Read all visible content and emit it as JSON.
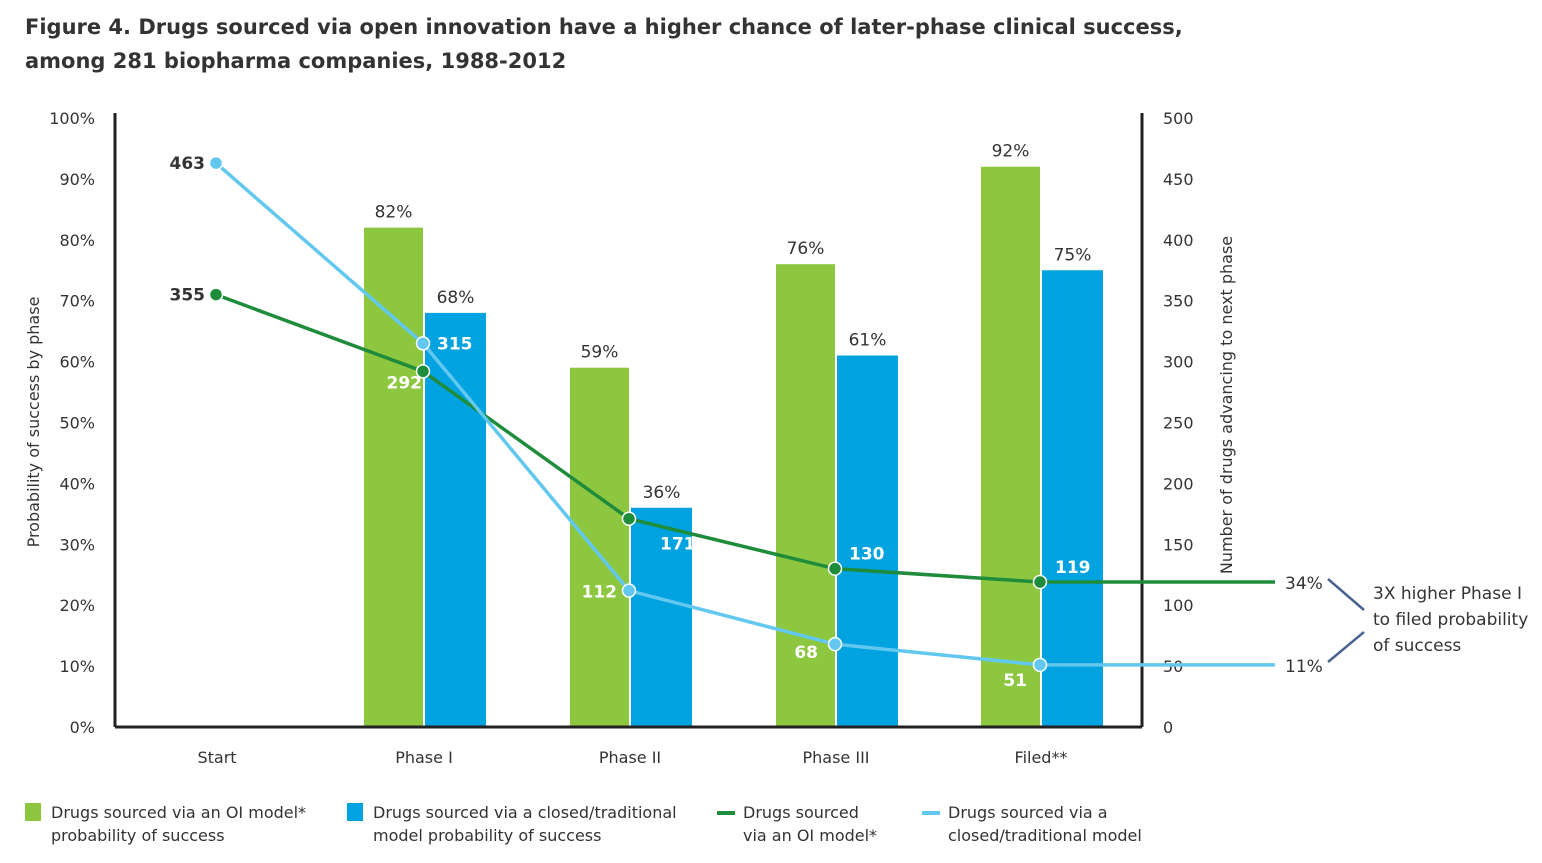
{
  "title_line1": "Figure 4. Drugs sourced via open innovation have a higher chance of later-phase clinical success,",
  "title_line2": "among 281 biopharma companies, 1988-2012",
  "chart_data": {
    "type": "bar+line",
    "categories": [
      "Start",
      "Phase I",
      "Phase II",
      "Phase III",
      "Filed**"
    ],
    "ylabel": "Probability of success by phase",
    "y2label": "Number of drugs advancing to next phase",
    "ylim": [
      0,
      100
    ],
    "y2lim": [
      0,
      500
    ],
    "yticks": [
      "0%",
      "10%",
      "20%",
      "30%",
      "40%",
      "50%",
      "60%",
      "70%",
      "80%",
      "90%",
      "100%"
    ],
    "y2ticks": [
      "0",
      "50",
      "100",
      "150",
      "200",
      "250",
      "300",
      "350",
      "400",
      "450",
      "500"
    ],
    "bars": [
      {
        "name": "Drugs sourced via an OI model* probability of success",
        "color": "#8dc63f",
        "values": [
          null,
          82,
          59,
          76,
          92
        ],
        "labels": [
          "",
          "82%",
          "59%",
          "76%",
          "92%"
        ]
      },
      {
        "name": "Drugs sourced via a closed/traditional model probability of success",
        "color": "#00a3e0",
        "values": [
          null,
          68,
          36,
          61,
          75
        ],
        "labels": [
          "",
          "68%",
          "36%",
          "61%",
          "75%"
        ]
      }
    ],
    "lines": [
      {
        "name": "Drugs sourced via an OI model*",
        "color": "#1e8c3a",
        "values": [
          355,
          292,
          171,
          130,
          119
        ],
        "end_label": "34%"
      },
      {
        "name": "Drugs sourced via a closed/traditional model",
        "color": "#62c8ef",
        "values": [
          463,
          315,
          112,
          68,
          51
        ],
        "end_label": "11%"
      }
    ],
    "annotation": [
      "3X higher Phase I",
      "to filed probability",
      "of success"
    ],
    "legend_position": "bottom",
    "grid": false
  },
  "legend": [
    {
      "line1": "Drugs sourced via an OI model*",
      "line2": "probability of success"
    },
    {
      "line1": "Drugs sourced via a closed/traditional",
      "line2": "model probability of success"
    },
    {
      "line1": "Drugs sourced",
      "line2": "via an OI model*"
    },
    {
      "line1": "Drugs sourced via a",
      "line2": "closed/traditional model"
    }
  ]
}
